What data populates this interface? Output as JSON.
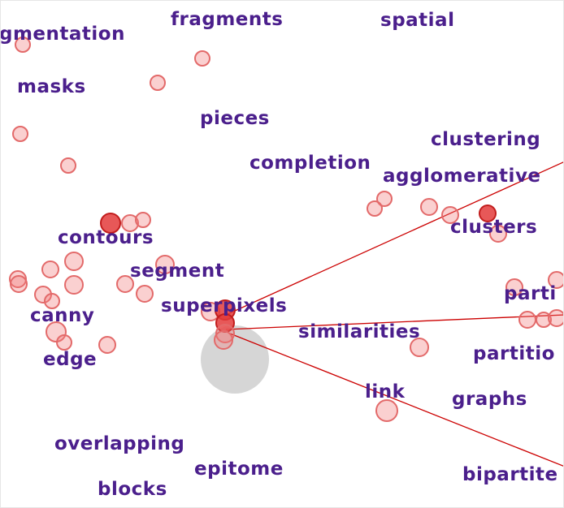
{
  "colors": {
    "label": "#4b1f8c",
    "node_fill": "rgba(240,120,120,0.35)",
    "node_stroke": "#e36a6a",
    "node_strong_fill": "#e33b3b",
    "node_strong_stroke": "#c21d1d",
    "edge": "#cc0000",
    "hub": "#d6d6d6"
  },
  "words": [
    "fragments",
    "spatial",
    "gmentation",
    "masks",
    "pieces",
    "clustering",
    "completion",
    "agglomerative",
    "clusters",
    "contours",
    "segment",
    "superpixels",
    "parti",
    "canny",
    "similarities",
    "partitio",
    "edge",
    "link",
    "graphs",
    "overlapping",
    "epitome",
    "bipartite",
    "blocks"
  ]
}
